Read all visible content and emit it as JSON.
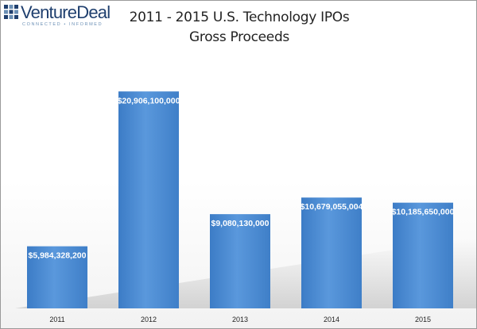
{
  "logo": {
    "name": "VentureDeal",
    "tagline": "CONNECTED • INFORMED"
  },
  "chart_data": {
    "type": "bar",
    "title": "2011 - 2015 U.S. Technology IPOs",
    "subtitle": "Gross Proceeds",
    "xlabel": "",
    "ylabel": "",
    "categories": [
      "2011",
      "2012",
      "2013",
      "2014",
      "2015"
    ],
    "values": [
      5984328200,
      20906100000,
      9080130000,
      10679055004,
      10185650000
    ],
    "value_labels": [
      "$5,984,328,200",
      "$20,906,100,000",
      "$9,080,130,000",
      "$10,679,055,004",
      "$10,185,650,000"
    ],
    "ylim": [
      0,
      22000000000
    ],
    "grid": false,
    "legend": "none",
    "bar_color": "#4a8ad2"
  }
}
